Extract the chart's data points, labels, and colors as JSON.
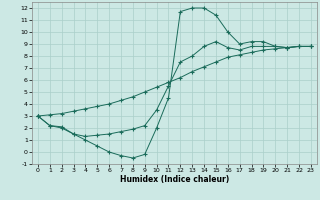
{
  "xlabel": "Humidex (Indice chaleur)",
  "bg_color": "#cce8e4",
  "grid_color": "#aacfca",
  "line_color": "#1a6b5a",
  "xlim": [
    -0.5,
    23.5
  ],
  "ylim": [
    -1,
    12.5
  ],
  "xticks": [
    0,
    1,
    2,
    3,
    4,
    5,
    6,
    7,
    8,
    9,
    10,
    11,
    12,
    13,
    14,
    15,
    16,
    17,
    18,
    19,
    20,
    21,
    22,
    23
  ],
  "yticks": [
    -1,
    0,
    1,
    2,
    3,
    4,
    5,
    6,
    7,
    8,
    9,
    10,
    11,
    12
  ],
  "curve_spike_x": [
    0,
    1,
    2,
    3,
    4,
    5,
    6,
    7,
    8,
    9,
    10,
    11,
    12,
    13,
    14,
    15,
    16,
    17,
    18,
    19,
    20,
    21,
    22,
    23
  ],
  "curve_spike_y": [
    3.0,
    2.2,
    2.0,
    1.5,
    1.0,
    0.5,
    0.0,
    -0.3,
    -0.5,
    -0.2,
    2.0,
    4.5,
    11.7,
    12.0,
    12.0,
    11.4,
    10.0,
    9.0,
    9.2,
    9.2,
    8.8,
    8.7,
    8.8,
    8.8
  ],
  "curve_mid_x": [
    0,
    1,
    2,
    3,
    4,
    5,
    6,
    7,
    8,
    9,
    10,
    11,
    12,
    13,
    14,
    15,
    16,
    17,
    18,
    19,
    20,
    21,
    22,
    23
  ],
  "curve_mid_y": [
    3.0,
    2.2,
    2.1,
    1.5,
    1.3,
    1.4,
    1.5,
    1.7,
    1.9,
    2.2,
    3.5,
    5.5,
    7.5,
    8.0,
    8.8,
    9.2,
    8.7,
    8.5,
    8.8,
    8.8,
    8.8,
    8.7,
    8.8,
    8.8
  ],
  "curve_linear_x": [
    0,
    1,
    2,
    3,
    4,
    5,
    6,
    7,
    8,
    9,
    10,
    11,
    12,
    13,
    14,
    15,
    16,
    17,
    18,
    19,
    20,
    21,
    22,
    23
  ],
  "curve_linear_y": [
    3.0,
    3.1,
    3.2,
    3.4,
    3.6,
    3.8,
    4.0,
    4.3,
    4.6,
    5.0,
    5.4,
    5.8,
    6.2,
    6.7,
    7.1,
    7.5,
    7.9,
    8.1,
    8.3,
    8.5,
    8.6,
    8.7,
    8.8,
    8.8
  ]
}
